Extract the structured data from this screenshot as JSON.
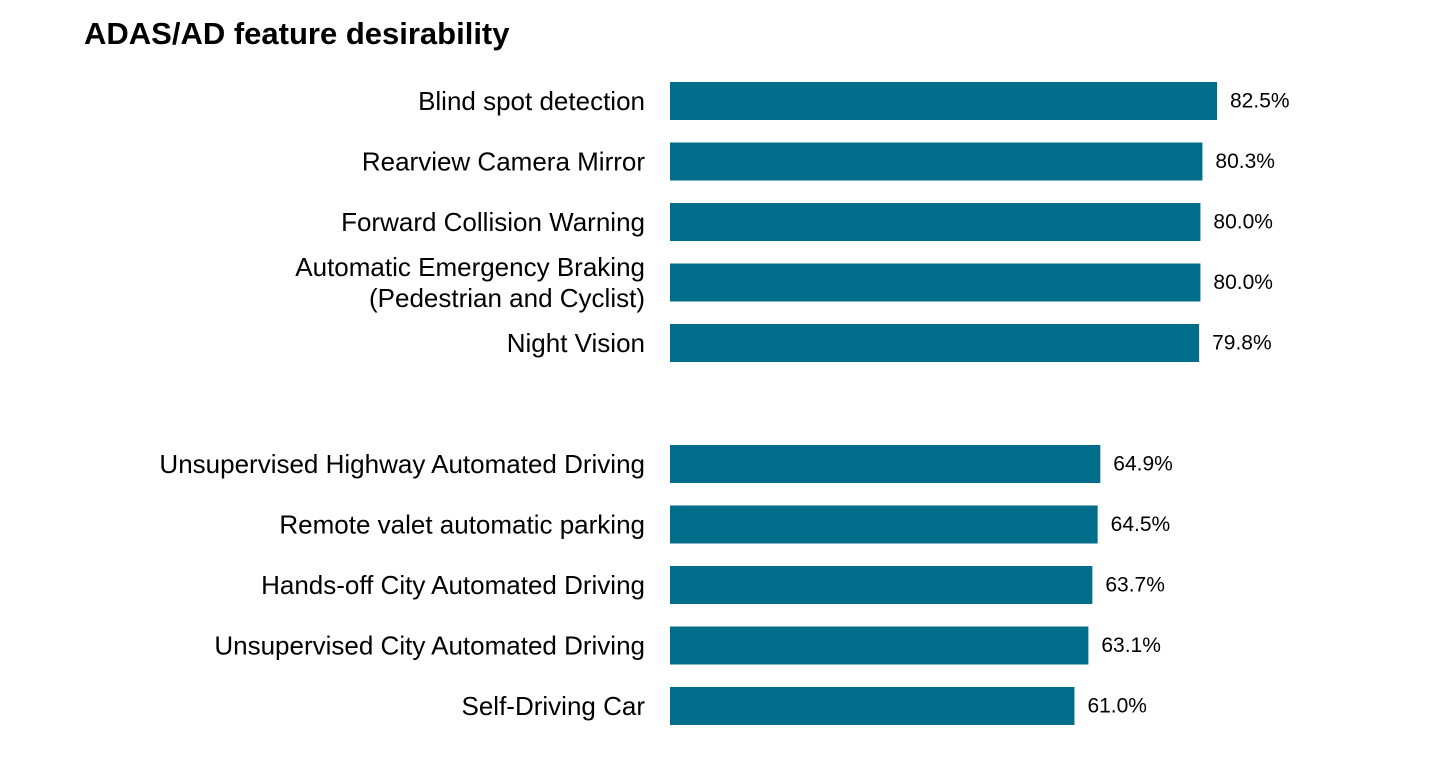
{
  "chart_data": {
    "type": "bar",
    "orientation": "horizontal",
    "title": "ADAS/AD feature desirability",
    "xlabel": "",
    "ylabel": "",
    "xlim": [
      0,
      100
    ],
    "grid": false,
    "legend": "none",
    "bar_color": "#006E8A",
    "value_suffix": "%",
    "groups": [
      {
        "categories": [
          [
            "Blind spot detection"
          ],
          [
            "Rearview Camera Mirror"
          ],
          [
            "Forward Collision Warning"
          ],
          [
            "Automatic Emergency Braking",
            "(Pedestrian and Cyclist)"
          ],
          [
            "Night Vision"
          ]
        ],
        "values": [
          82.5,
          80.3,
          80.0,
          80.0,
          79.8
        ],
        "labels": [
          "82.5%",
          "80.3%",
          "80.0%",
          "80.0%",
          "79.8%"
        ]
      },
      {
        "categories": [
          [
            "Unsupervised Highway Automated Driving"
          ],
          [
            "Remote valet automatic parking"
          ],
          [
            "Hands-off City Automated Driving"
          ],
          [
            "Unsupervised City Automated Driving"
          ],
          [
            "Self-Driving Car"
          ]
        ],
        "values": [
          64.9,
          64.5,
          63.7,
          63.1,
          61.0
        ],
        "labels": [
          "64.9%",
          "64.5%",
          "63.7%",
          "63.1%",
          "61.0%"
        ]
      }
    ]
  }
}
